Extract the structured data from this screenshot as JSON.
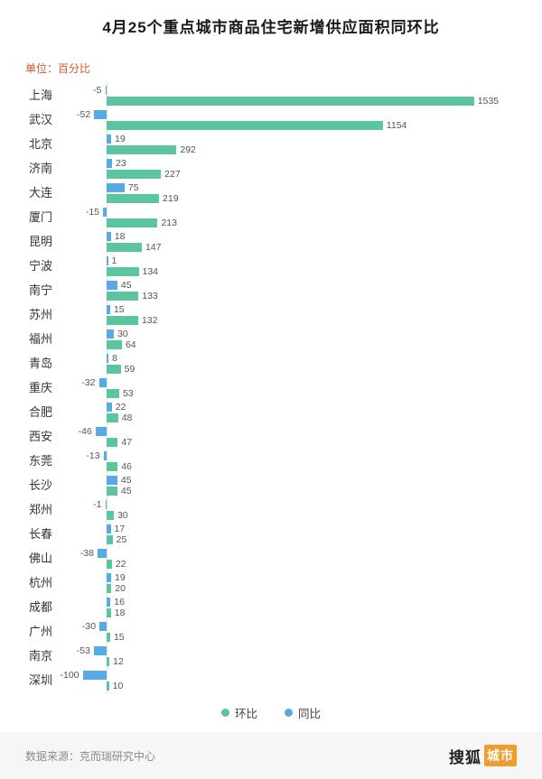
{
  "header": {
    "title": "4月25个重点城市商品住宅新增供应面积同环比",
    "unit_label": "单位：百分比"
  },
  "legend": [
    {
      "label": "环比",
      "color": "#5bc5a0"
    },
    {
      "label": "同比",
      "color": "#58abe2"
    }
  ],
  "footer": {
    "source": "数据来源：克而瑞研究中心",
    "logo_text": "搜狐",
    "logo_boxed_text": "城市"
  },
  "colors": {
    "huanbi_green": "#5bc5a0",
    "tongbi_blue": "#58abe2",
    "unit_label_orange": "#e0542c",
    "logo_box_orange": "#ef9e2e"
  },
  "chart_data": {
    "type": "bar",
    "orientation": "horizontal",
    "unit": "百分比",
    "grid": false,
    "legend_position": "bottom",
    "bar_order_top_to_bottom": [
      "同比",
      "环比"
    ],
    "categories": [
      "上海",
      "武汉",
      "北京",
      "济南",
      "大连",
      "厦门",
      "昆明",
      "宁波",
      "南宁",
      "苏州",
      "福州",
      "青岛",
      "重庆",
      "合肥",
      "西安",
      "东莞",
      "长沙",
      "郑州",
      "长春",
      "佛山",
      "杭州",
      "成都",
      "广州",
      "南京",
      "深圳"
    ],
    "series": [
      {
        "name": "环比",
        "color": "#5bc5a0",
        "values": [
          1535,
          1154,
          292,
          227,
          219,
          213,
          147,
          134,
          133,
          132,
          64,
          59,
          53,
          48,
          47,
          46,
          45,
          30,
          25,
          22,
          20,
          18,
          15,
          12,
          10
        ]
      },
      {
        "name": "同比",
        "color": "#58abe2",
        "values": [
          -5,
          -52,
          19,
          23,
          75,
          -15,
          18,
          1,
          45,
          15,
          30,
          8,
          -32,
          22,
          -46,
          -13,
          45,
          -1,
          17,
          -38,
          19,
          16,
          -30,
          -53,
          -100
        ]
      }
    ]
  }
}
